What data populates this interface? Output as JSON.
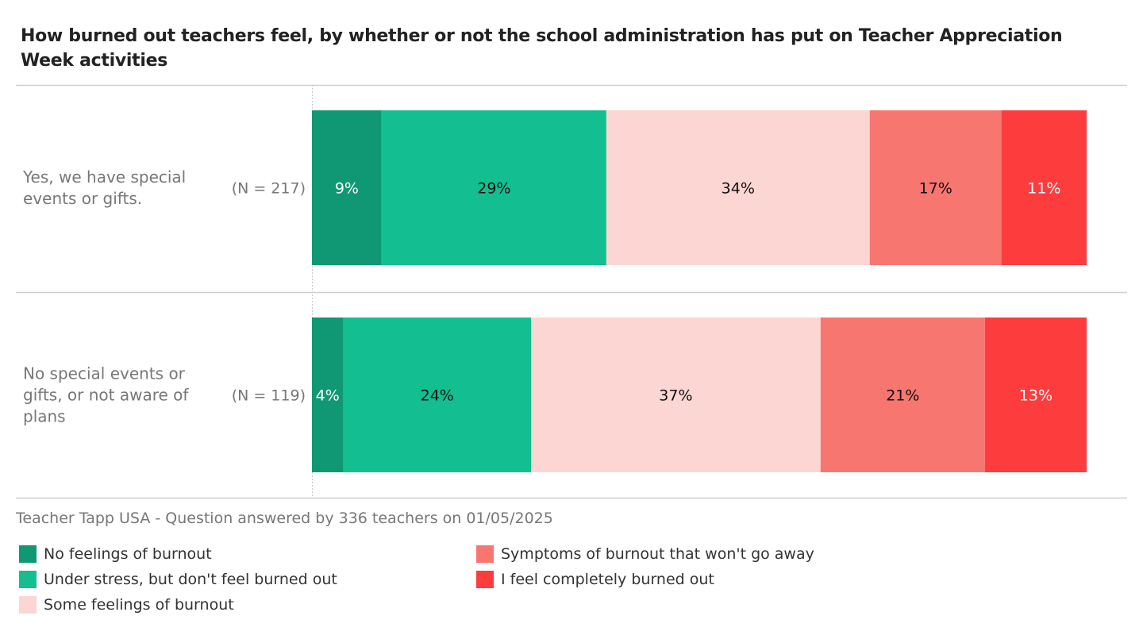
{
  "chart_data": {
    "type": "bar",
    "orientation": "horizontal",
    "stacked": true,
    "title": "How burned out teachers feel, by whether or not the school administration has put on Teacher Appreciation Week activities",
    "categories": [
      {
        "label": "Yes, we have special events or gifts.",
        "n_label": "(N = 217)"
      },
      {
        "label": "No special events or gifts, or not aware of plans",
        "n_label": "(N = 119)"
      }
    ],
    "series": [
      {
        "name": "No feelings of burnout",
        "color": "#0f9873",
        "text_color": "#ffffff",
        "values": [
          9,
          4
        ]
      },
      {
        "name": "Under stress, but don't feel burned out",
        "color": "#13bf91",
        "text_color": "#111111",
        "values": [
          29,
          24
        ]
      },
      {
        "name": "Some feelings of burnout",
        "color": "#fbd6d3",
        "text_color": "#111111",
        "values": [
          34,
          37
        ]
      },
      {
        "name": "Symptoms of burnout that won't go away",
        "color": "#f87670",
        "text_color": "#111111",
        "values": [
          17,
          21
        ]
      },
      {
        "name": "I feel completely burned out",
        "color": "#fd3c3e",
        "text_color": "#ffffff",
        "values": [
          11,
          13
        ]
      }
    ],
    "value_suffix": "%",
    "legend_position": "bottom",
    "grid": false
  },
  "source": "Teacher Tapp USA - Question answered by 336 teachers on 01/05/2025"
}
